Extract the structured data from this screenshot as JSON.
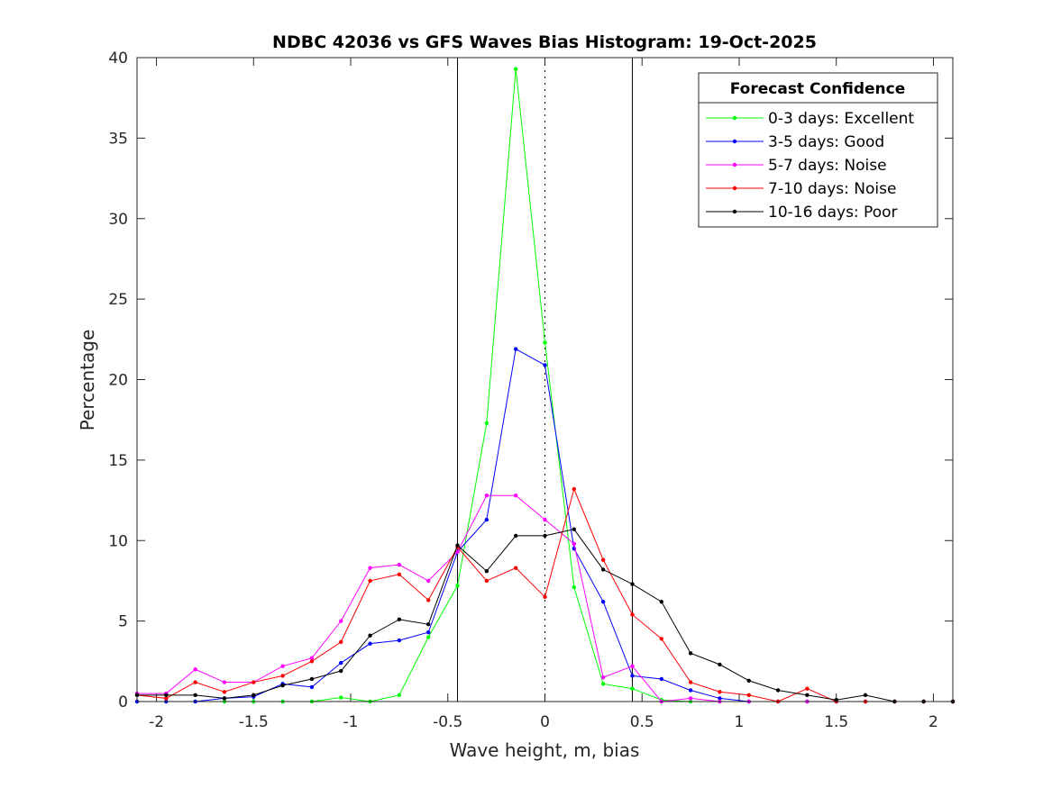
{
  "chart_data": {
    "type": "line",
    "title": "NDBC 42036 vs GFS Waves Bias Histogram: 19-Oct-2025",
    "xlabel": "Wave height, m, bias",
    "ylabel": "Percentage",
    "xlim": [
      -2.1,
      2.1
    ],
    "ylim": [
      0,
      40
    ],
    "xticks": [
      -2,
      -1.5,
      -1,
      -0.5,
      0,
      0.5,
      1,
      1.5,
      2
    ],
    "xtick_labels": [
      "-2",
      "-1.5",
      "-1",
      "-0.5",
      "0",
      "0.5",
      "1",
      "1.5",
      "2"
    ],
    "yticks": [
      0,
      5,
      10,
      15,
      20,
      25,
      30,
      35,
      40
    ],
    "ytick_labels": [
      "0",
      "5",
      "10",
      "15",
      "20",
      "25",
      "30",
      "35",
      "40"
    ],
    "vertical_lines": [
      {
        "x": -0.45,
        "style": "solid"
      },
      {
        "x": 0,
        "style": "dotted"
      },
      {
        "x": 0.45,
        "style": "solid"
      }
    ],
    "legend_title": "Forecast Confidence",
    "legend_position": "top-right",
    "x": [
      -2.1,
      -1.95,
      -1.8,
      -1.65,
      -1.5,
      -1.35,
      -1.2,
      -1.05,
      -0.9,
      -0.75,
      -0.6,
      -0.45,
      -0.3,
      -0.15,
      0,
      0.15,
      0.3,
      0.45,
      0.6,
      0.75,
      0.9,
      1.05,
      1.2,
      1.35,
      1.5,
      1.65,
      1.8,
      1.95,
      2.1
    ],
    "series": [
      {
        "name": "0-3 days: Excellent",
        "color": "#00ff00",
        "values": [
          0,
          0,
          0,
          0,
          0,
          0,
          0,
          0.25,
          0,
          0.4,
          4.0,
          7.2,
          17.3,
          39.3,
          22.3,
          7.1,
          1.1,
          0.8,
          0.1,
          0,
          0,
          0,
          0,
          0,
          0,
          0,
          0,
          0,
          0
        ]
      },
      {
        "name": "3-5 days: Good",
        "color": "#0000ff",
        "values": [
          0,
          0,
          0,
          0.2,
          0.3,
          1.1,
          0.9,
          2.4,
          3.6,
          3.8,
          4.3,
          9.3,
          11.3,
          21.9,
          20.9,
          9.5,
          6.2,
          1.6,
          1.4,
          0.7,
          0.2,
          0,
          0,
          0,
          0,
          0,
          0,
          0,
          0
        ]
      },
      {
        "name": "5-7 days: Noise",
        "color": "#ff00ff",
        "values": [
          0.5,
          0.5,
          2.0,
          1.2,
          1.2,
          2.2,
          2.7,
          5.0,
          8.3,
          8.5,
          7.5,
          9.3,
          12.8,
          12.8,
          11.3,
          9.8,
          1.5,
          2.2,
          0,
          0.2,
          0,
          0,
          0,
          0,
          0,
          0,
          0,
          0,
          0
        ]
      },
      {
        "name": "7-10 days: Noise",
        "color": "#ff0000",
        "values": [
          0.4,
          0.2,
          1.2,
          0.6,
          1.2,
          1.6,
          2.5,
          3.7,
          7.5,
          7.9,
          6.3,
          9.6,
          7.5,
          8.3,
          6.5,
          13.2,
          8.8,
          5.4,
          3.9,
          1.2,
          0.6,
          0.4,
          0,
          0.8,
          0,
          0,
          0,
          0,
          0
        ]
      },
      {
        "name": "10-16 days: Poor",
        "color": "#000000",
        "values": [
          0.4,
          0.4,
          0.4,
          0.2,
          0.4,
          1.0,
          1.4,
          1.9,
          4.1,
          5.1,
          4.8,
          9.7,
          8.1,
          10.3,
          10.3,
          10.7,
          8.2,
          7.3,
          6.2,
          3.0,
          2.3,
          1.3,
          0.7,
          0.4,
          0.1,
          0.4,
          0,
          0,
          0
        ]
      }
    ]
  }
}
